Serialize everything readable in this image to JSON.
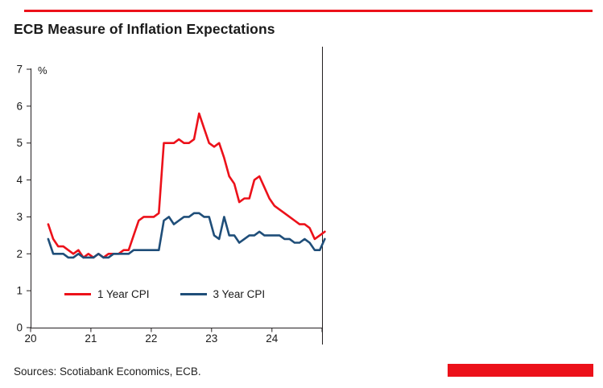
{
  "colors": {
    "accent_red": "#EC111A",
    "navy": "#1F4E79",
    "axis": "#231F20",
    "text": "#1a1a1a"
  },
  "footer": {
    "sources": "Sources: Scotiabank Economics,  ECB."
  },
  "chart_data": {
    "type": "line",
    "title": "ECB Measure of Inflation Expectations",
    "xlabel": "",
    "ylabel": "%",
    "ylim": [
      0,
      7
    ],
    "yticks": [
      0,
      1,
      2,
      3,
      4,
      5,
      6,
      7
    ],
    "xlim": [
      2020,
      2024.83
    ],
    "xticks": [
      {
        "v": 2020,
        "label": "20"
      },
      {
        "v": 2021,
        "label": "21"
      },
      {
        "v": 2022,
        "label": "22"
      },
      {
        "v": 2023,
        "label": "23"
      },
      {
        "v": 2024,
        "label": "24"
      },
      {
        "v": 2024.83,
        "label": ""
      }
    ],
    "grid": false,
    "legend_position": "inside bottom-left",
    "x": [
      2020.292,
      2020.375,
      2020.458,
      2020.542,
      2020.625,
      2020.708,
      2020.792,
      2020.875,
      2020.958,
      2021.042,
      2021.125,
      2021.208,
      2021.292,
      2021.375,
      2021.458,
      2021.542,
      2021.625,
      2021.708,
      2021.792,
      2021.875,
      2021.958,
      2022.042,
      2022.125,
      2022.208,
      2022.292,
      2022.375,
      2022.458,
      2022.542,
      2022.625,
      2022.708,
      2022.792,
      2022.875,
      2022.958,
      2023.042,
      2023.125,
      2023.208,
      2023.292,
      2023.375,
      2023.458,
      2023.542,
      2023.625,
      2023.708,
      2023.792,
      2023.875,
      2023.958,
      2024.042,
      2024.125,
      2024.208,
      2024.292,
      2024.375,
      2024.458,
      2024.542,
      2024.625,
      2024.708,
      2024.792,
      2024.875
    ],
    "series": [
      {
        "name": "1 Year CPI",
        "color": "#EC111A",
        "values": [
          2.8,
          2.4,
          2.2,
          2.2,
          2.1,
          2.0,
          2.1,
          1.9,
          2.0,
          1.9,
          2.0,
          1.9,
          2.0,
          2.0,
          2.0,
          2.1,
          2.1,
          2.5,
          2.9,
          3.0,
          3.0,
          3.0,
          3.1,
          5.0,
          5.0,
          5.0,
          5.1,
          5.0,
          5.0,
          5.1,
          5.8,
          5.4,
          5.0,
          4.9,
          5.0,
          4.6,
          4.1,
          3.9,
          3.4,
          3.5,
          3.5,
          4.0,
          4.1,
          3.8,
          3.5,
          3.3,
          3.2,
          3.1,
          3.0,
          2.9,
          2.8,
          2.8,
          2.7,
          2.4,
          2.5,
          2.6
        ]
      },
      {
        "name": "3 Year CPI",
        "color": "#1F4E79",
        "values": [
          2.4,
          2.0,
          2.0,
          2.0,
          1.9,
          1.9,
          2.0,
          1.9,
          1.9,
          1.9,
          2.0,
          1.9,
          1.9,
          2.0,
          2.0,
          2.0,
          2.0,
          2.1,
          2.1,
          2.1,
          2.1,
          2.1,
          2.1,
          2.9,
          3.0,
          2.8,
          2.9,
          3.0,
          3.0,
          3.1,
          3.1,
          3.0,
          3.0,
          2.5,
          2.4,
          3.0,
          2.5,
          2.5,
          2.3,
          2.4,
          2.5,
          2.5,
          2.6,
          2.5,
          2.5,
          2.5,
          2.5,
          2.4,
          2.4,
          2.3,
          2.3,
          2.4,
          2.3,
          2.1,
          2.1,
          2.4
        ]
      }
    ]
  }
}
